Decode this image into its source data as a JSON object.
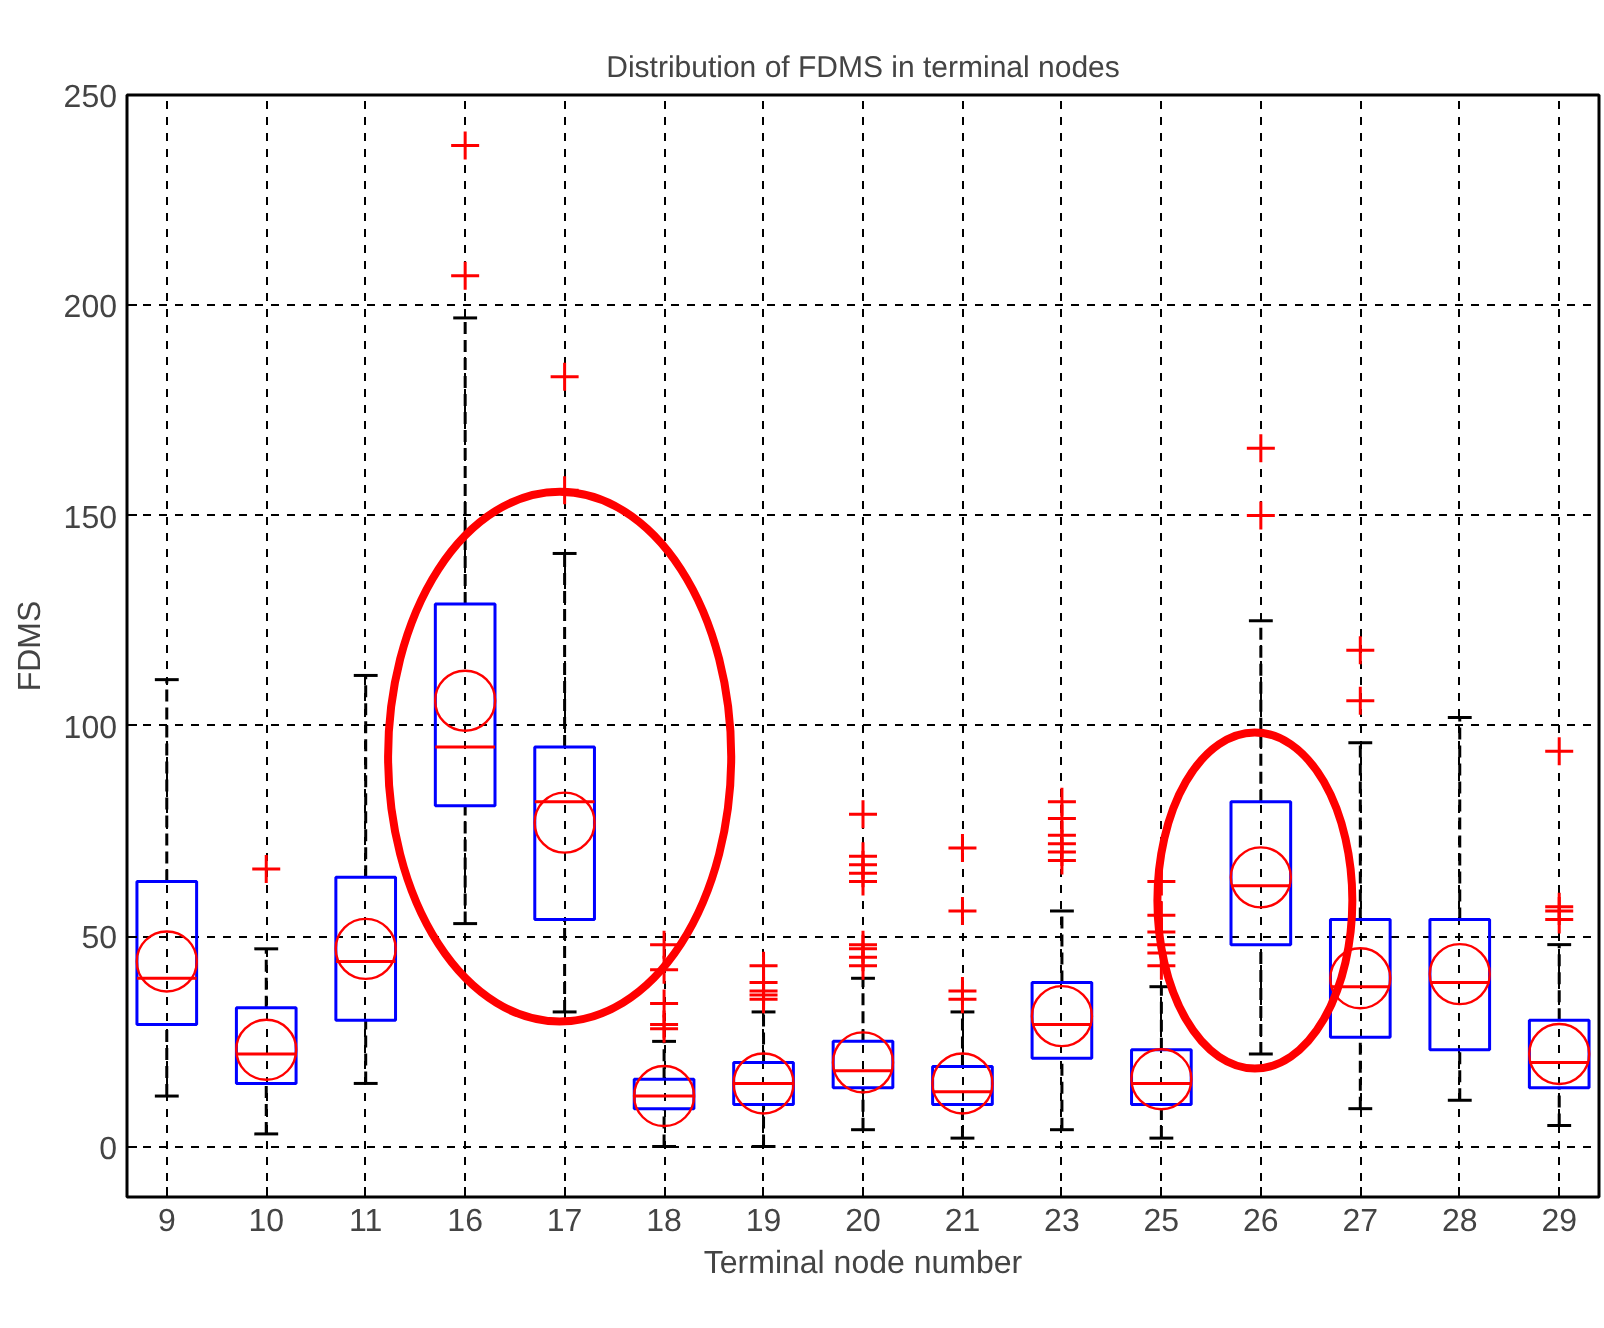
{
  "chart_data": {
    "type": "box",
    "title": "Distribution of FDMS in terminal nodes",
    "xlabel": "Terminal node number",
    "ylabel": "FDMS",
    "categories": [
      "9",
      "10",
      "11",
      "16",
      "17",
      "18",
      "19",
      "20",
      "21",
      "23",
      "25",
      "26",
      "27",
      "28",
      "29"
    ],
    "boxes": [
      {
        "low": 12,
        "q1": 29,
        "median": 40,
        "q3": 63,
        "high": 111,
        "mean": 44
      },
      {
        "low": 3,
        "q1": 15,
        "median": 22,
        "q3": 33,
        "high": 47,
        "mean": 23,
        "outliers": [
          66
        ]
      },
      {
        "low": 15,
        "q1": 30,
        "median": 44,
        "q3": 64,
        "high": 112,
        "mean": 47
      },
      {
        "low": 53,
        "q1": 81,
        "median": 95,
        "q3": 129,
        "high": 197,
        "mean": 106,
        "outliers": [
          207,
          238
        ]
      },
      {
        "low": 32,
        "q1": 54,
        "median": 82,
        "q3": 95,
        "high": 141,
        "mean": 77,
        "outliers": [
          156,
          183
        ]
      },
      {
        "low": 0,
        "q1": 9,
        "median": 12,
        "q3": 16,
        "high": 25,
        "mean": 12,
        "outliers": [
          28,
          29,
          34,
          42,
          48
        ]
      },
      {
        "low": 0,
        "q1": 10,
        "median": 15,
        "q3": 20,
        "high": 32,
        "mean": 15,
        "outliers": [
          35,
          36,
          37,
          39,
          43
        ]
      },
      {
        "low": 4,
        "q1": 14,
        "median": 18,
        "q3": 25,
        "high": 40,
        "mean": 20,
        "outliers": [
          43,
          45,
          47,
          48,
          63,
          65,
          67,
          69,
          79
        ]
      },
      {
        "low": 2,
        "q1": 10,
        "median": 13,
        "q3": 19,
        "high": 32,
        "mean": 15,
        "outliers": [
          35,
          37,
          56,
          71
        ]
      },
      {
        "low": 4,
        "q1": 21,
        "median": 29,
        "q3": 39,
        "high": 56,
        "mean": 31,
        "outliers": [
          68,
          70,
          72,
          74,
          78,
          82
        ]
      },
      {
        "low": 2,
        "q1": 10,
        "median": 15,
        "q3": 23,
        "high": 38,
        "mean": 16,
        "outliers": [
          43,
          46,
          48,
          51,
          55,
          63
        ]
      },
      {
        "low": 22,
        "q1": 48,
        "median": 62,
        "q3": 82,
        "high": 125,
        "mean": 64,
        "outliers": [
          150,
          166
        ]
      },
      {
        "low": 9,
        "q1": 26,
        "median": 38,
        "q3": 54,
        "high": 96,
        "mean": 40,
        "outliers": [
          106,
          118
        ]
      },
      {
        "low": 11,
        "q1": 23,
        "median": 39,
        "q3": 54,
        "high": 102,
        "mean": 41
      },
      {
        "low": 5,
        "q1": 14,
        "median": 20,
        "q3": 30,
        "high": 48,
        "mean": 22,
        "outliers": [
          54,
          56,
          57,
          94
        ]
      }
    ],
    "ylim": [
      -12,
      250
    ],
    "yticks": [
      0,
      50,
      100,
      150,
      200,
      250
    ],
    "grid": true
  }
}
